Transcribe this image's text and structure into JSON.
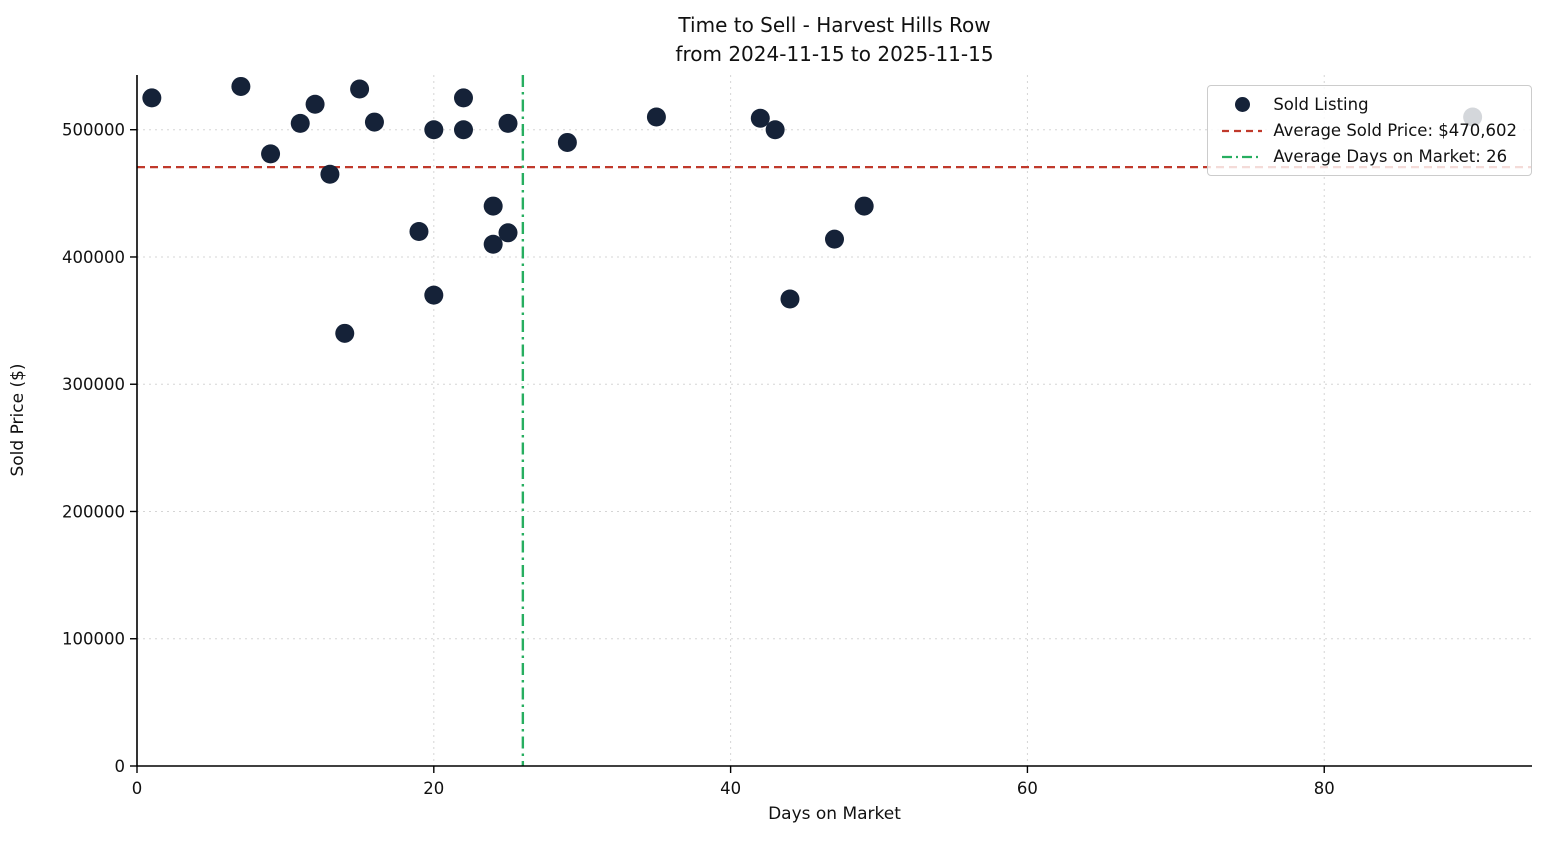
{
  "chart_data": {
    "type": "scatter",
    "title": "Time to Sell - Harvest Hills Row",
    "subtitle": "from 2024-11-15 to 2025-11-15",
    "xlabel": "Days on Market",
    "ylabel": "Sold Price ($)",
    "xlim": [
      0,
      94
    ],
    "ylim": [
      0,
      543000
    ],
    "xticks": [
      0,
      20,
      40,
      60,
      80
    ],
    "yticks": [
      0,
      100000,
      200000,
      300000,
      400000,
      500000
    ],
    "grid": true,
    "legend_position": "upper right",
    "points": [
      [
        1,
        525000
      ],
      [
        7,
        534000
      ],
      [
        9,
        481000
      ],
      [
        11,
        505000
      ],
      [
        12,
        520000
      ],
      [
        13,
        465000
      ],
      [
        14,
        340000
      ],
      [
        15,
        532000
      ],
      [
        16,
        506000
      ],
      [
        19,
        420000
      ],
      [
        20,
        500000
      ],
      [
        20,
        370000
      ],
      [
        22,
        525000
      ],
      [
        22,
        500000
      ],
      [
        24,
        440000
      ],
      [
        24,
        410000
      ],
      [
        25,
        419000
      ],
      [
        25,
        505000
      ],
      [
        29,
        490000
      ],
      [
        35,
        510000
      ],
      [
        42,
        509000
      ],
      [
        43,
        500000
      ],
      [
        44,
        367000
      ],
      [
        47,
        414000
      ],
      [
        49,
        440000
      ],
      [
        90,
        510000
      ]
    ],
    "avg_sold_price": 470602,
    "avg_days_on_market": 26,
    "legend": [
      {
        "label": "Sold Listing",
        "marker": "dot",
        "color": "#152238"
      },
      {
        "label": "Average Sold Price: $470,602",
        "marker": "dashed-line",
        "color": "#c0392b"
      },
      {
        "label": "Average Days on Market: 26",
        "marker": "dashdot-line",
        "color": "#27ae60"
      }
    ],
    "colors": {
      "point": "#152238",
      "avg_price_line": "#c0392b",
      "avg_days_line": "#27ae60",
      "grid": "#d5d5d5",
      "axis": "#000000",
      "background": "#ffffff"
    }
  }
}
